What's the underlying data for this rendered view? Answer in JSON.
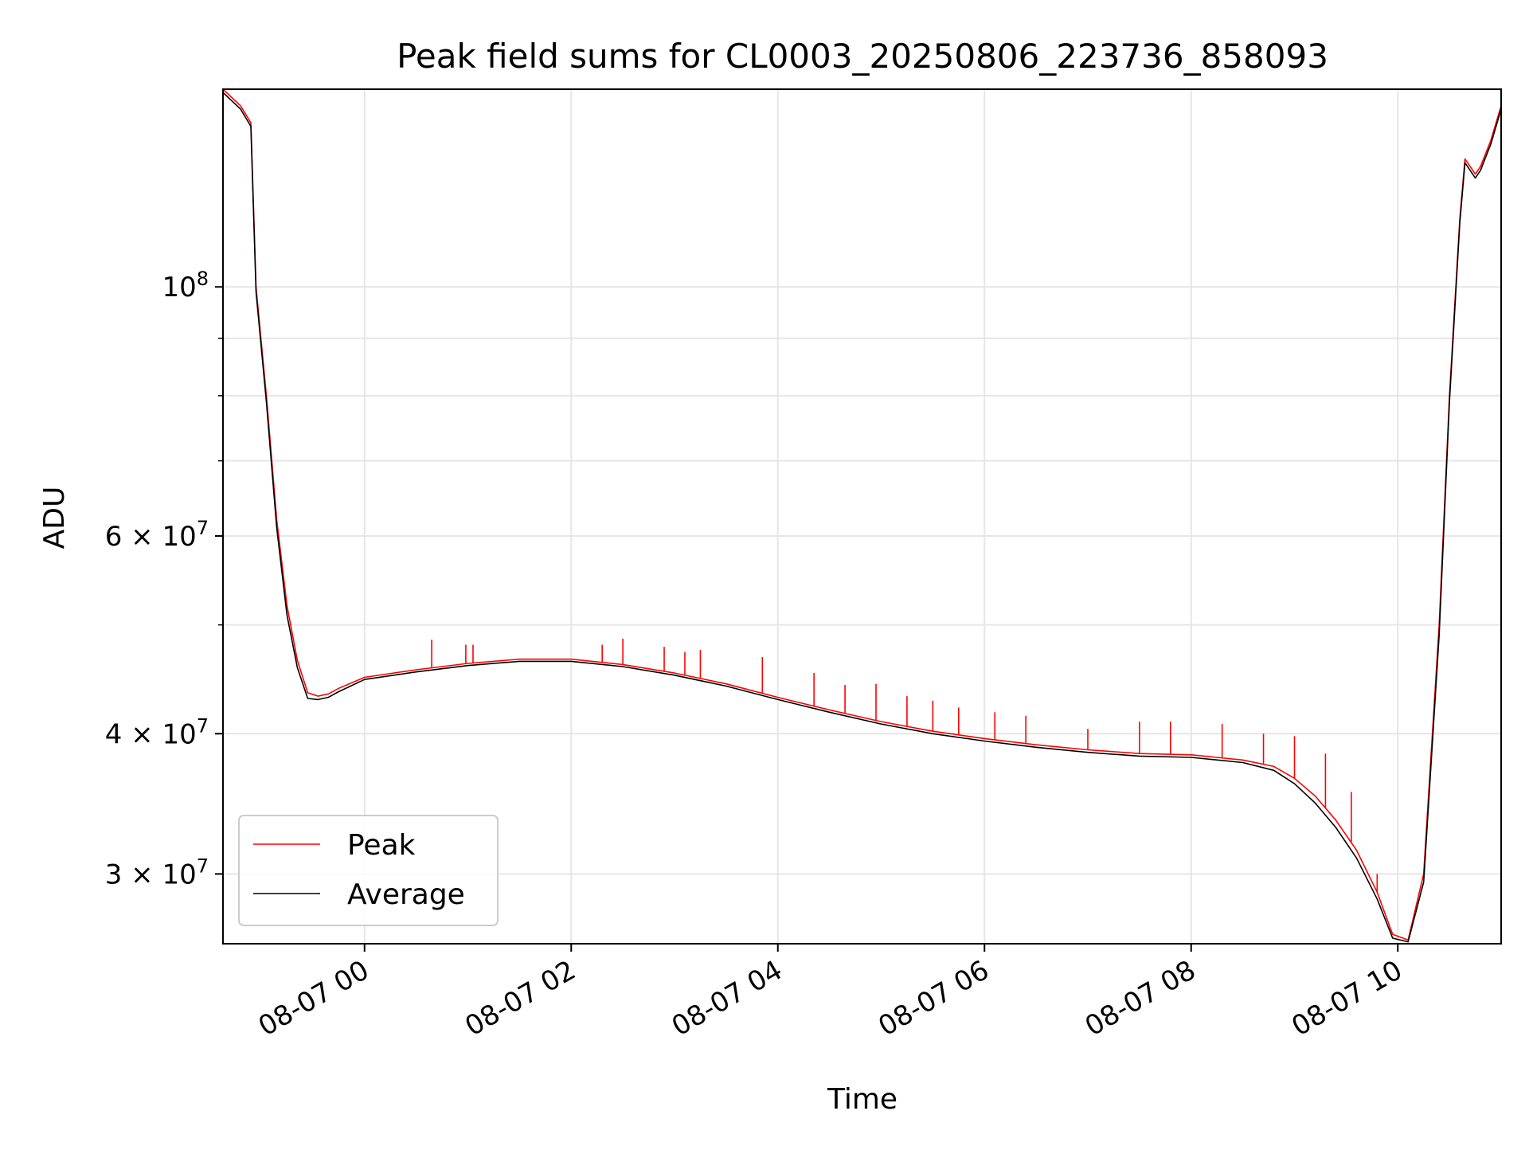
{
  "chart_data": {
    "type": "line",
    "title": "Peak field sums for CL0003_20250806_223736_858093",
    "xlabel": "Time",
    "ylabel": "ADU",
    "yscale": "log",
    "grid": true,
    "legend_position": "lower-left",
    "x_unit": "hours relative to 2025-08-07 00:00",
    "xlim": [
      -1.37,
      11.0
    ],
    "ylim": [
      26000000,
      150000000
    ],
    "x_ticks": [
      {
        "value": 0,
        "label": "08-07 00"
      },
      {
        "value": 2,
        "label": "08-07 02"
      },
      {
        "value": 4,
        "label": "08-07 04"
      },
      {
        "value": 6,
        "label": "08-07 06"
      },
      {
        "value": 8,
        "label": "08-07 08"
      },
      {
        "value": 10,
        "label": "08-07 10"
      }
    ],
    "y_ticks_major": [
      {
        "value": 30000000,
        "label": "3 × 10",
        "exp": "7"
      },
      {
        "value": 40000000,
        "label": "4 × 10",
        "exp": "7"
      },
      {
        "value": 60000000,
        "label": "6 × 10",
        "exp": "7"
      },
      {
        "value": 100000000,
        "label": "10",
        "exp": "8"
      }
    ],
    "y_ticks_minor": [
      50000000,
      70000000,
      80000000,
      90000000
    ],
    "series": [
      {
        "name": "Peak",
        "color": "#ff0000",
        "x": [
          -1.37,
          -1.2,
          -1.1,
          -1.05,
          -0.95,
          -0.85,
          -0.75,
          -0.65,
          -0.55,
          -0.45,
          -0.35,
          -0.25,
          0.0,
          0.5,
          1.0,
          1.5,
          2.0,
          2.5,
          3.0,
          3.5,
          4.0,
          4.5,
          5.0,
          5.5,
          6.0,
          6.5,
          7.0,
          7.5,
          8.0,
          8.5,
          8.8,
          9.0,
          9.2,
          9.4,
          9.6,
          9.8,
          9.95,
          10.1,
          10.25,
          10.4,
          10.5,
          10.6,
          10.65,
          10.7,
          10.75,
          10.8,
          10.9,
          11.0
        ],
        "y": [
          150000000,
          145000000,
          140000000,
          100000000,
          80000000,
          62000000,
          52000000,
          46500000,
          43500000,
          43200000,
          43400000,
          43900000,
          44900000,
          45600000,
          46200000,
          46600000,
          46600000,
          46100000,
          45300000,
          44300000,
          43100000,
          42000000,
          41000000,
          40200000,
          39600000,
          39100000,
          38700000,
          38400000,
          38300000,
          37900000,
          37400000,
          36500000,
          35200000,
          33500000,
          31500000,
          28900000,
          26500000,
          26200000,
          30000000,
          50000000,
          80000000,
          115000000,
          130000000,
          128000000,
          126000000,
          128000000,
          135000000,
          145000000
        ],
        "spikes": [
          {
            "x": 0.65,
            "y": 48500000
          },
          {
            "x": 0.98,
            "y": 48000000
          },
          {
            "x": 1.05,
            "y": 48000000
          },
          {
            "x": 2.3,
            "y": 48000000
          },
          {
            "x": 2.5,
            "y": 48600000
          },
          {
            "x": 2.9,
            "y": 47800000
          },
          {
            "x": 3.1,
            "y": 47300000
          },
          {
            "x": 3.25,
            "y": 47500000
          },
          {
            "x": 3.85,
            "y": 46800000
          },
          {
            "x": 4.35,
            "y": 45300000
          },
          {
            "x": 4.65,
            "y": 44200000
          },
          {
            "x": 4.95,
            "y": 44300000
          },
          {
            "x": 5.25,
            "y": 43200000
          },
          {
            "x": 5.5,
            "y": 42800000
          },
          {
            "x": 5.75,
            "y": 42200000
          },
          {
            "x": 6.1,
            "y": 41800000
          },
          {
            "x": 6.4,
            "y": 41500000
          },
          {
            "x": 7.0,
            "y": 40400000
          },
          {
            "x": 7.5,
            "y": 41000000
          },
          {
            "x": 7.8,
            "y": 41000000
          },
          {
            "x": 8.3,
            "y": 40800000
          },
          {
            "x": 8.7,
            "y": 40000000
          },
          {
            "x": 9.0,
            "y": 39800000
          },
          {
            "x": 9.3,
            "y": 38400000
          },
          {
            "x": 9.55,
            "y": 35500000
          },
          {
            "x": 9.8,
            "y": 30000000
          }
        ]
      },
      {
        "name": "Average",
        "color": "#000000",
        "x": [
          -1.37,
          -1.2,
          -1.1,
          -1.05,
          -0.95,
          -0.85,
          -0.75,
          -0.65,
          -0.55,
          -0.45,
          -0.35,
          -0.25,
          0.0,
          0.5,
          1.0,
          1.5,
          2.0,
          2.5,
          3.0,
          3.5,
          4.0,
          4.5,
          5.0,
          5.5,
          6.0,
          6.5,
          7.0,
          7.5,
          8.0,
          8.5,
          8.8,
          9.0,
          9.2,
          9.4,
          9.6,
          9.8,
          9.95,
          10.1,
          10.25,
          10.4,
          10.5,
          10.6,
          10.65,
          10.7,
          10.75,
          10.8,
          10.9,
          11.0
        ],
        "y": [
          149000000,
          144000000,
          139000000,
          99000000,
          79000000,
          61000000,
          51000000,
          45800000,
          43000000,
          42900000,
          43100000,
          43600000,
          44700000,
          45400000,
          46000000,
          46400000,
          46400000,
          45900000,
          45100000,
          44100000,
          42900000,
          41800000,
          40800000,
          40000000,
          39400000,
          38900000,
          38500000,
          38200000,
          38100000,
          37700000,
          37100000,
          36100000,
          34700000,
          33000000,
          31000000,
          28500000,
          26300000,
          26100000,
          29500000,
          49000000,
          79000000,
          114000000,
          129000000,
          127000000,
          125000000,
          127000000,
          134000000,
          144000000
        ]
      }
    ]
  }
}
